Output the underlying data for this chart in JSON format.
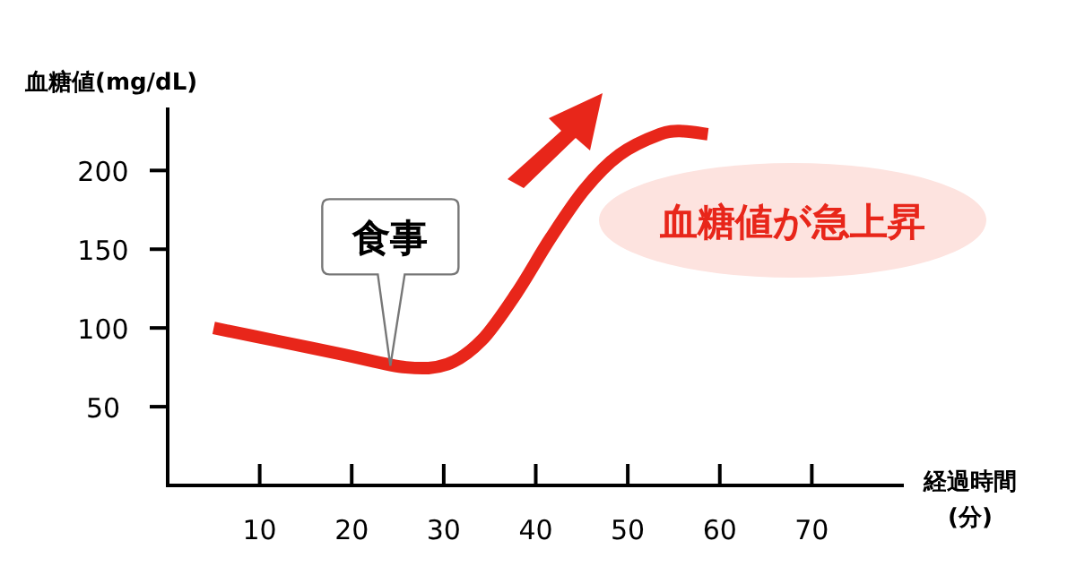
{
  "chart_data": {
    "type": "line",
    "ylabel": "血糖値(mg/dL)",
    "xlabel": "経過時間\n(分)",
    "x": [
      5,
      11.7,
      19.2,
      25.9,
      30.4,
      34.1,
      37.9,
      41.6,
      45.3,
      49.1,
      53.5,
      56,
      58.7
    ],
    "series": [
      {
        "color": "#e8261a",
        "values": [
          100,
          92,
          83,
          75,
          77,
          92,
          122,
          157,
          188,
          210,
          223,
          225,
          223
        ]
      }
    ],
    "xlim": [
      0,
      80
    ],
    "ylim": [
      0,
      240
    ],
    "xticks": [
      10,
      20,
      30,
      40,
      50,
      60,
      70
    ],
    "yticks": [
      50,
      100,
      150,
      200
    ],
    "grid": false,
    "annotations": [
      {
        "text": "食事",
        "x": 24.2,
        "y": 76
      },
      "血糖値が急上昇"
    ]
  }
}
